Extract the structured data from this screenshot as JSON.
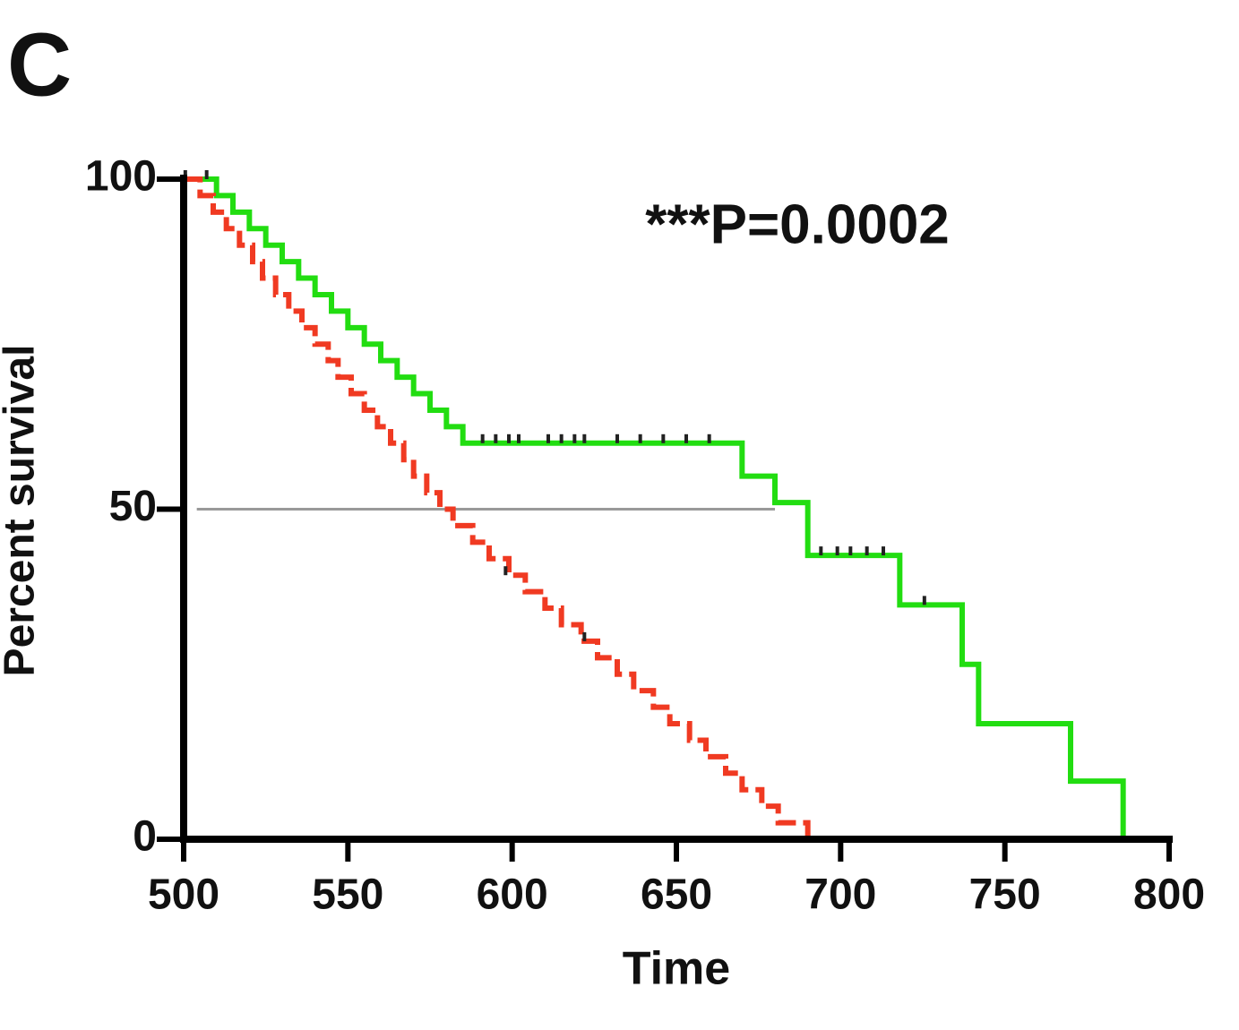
{
  "chart_data": {
    "type": "survival",
    "panel_label": "C",
    "annotation": "***P=0.0002",
    "x_label": "Time",
    "y_label": "Percent survival",
    "xlim": [
      500,
      800
    ],
    "xticks": [
      500,
      550,
      600,
      650,
      700,
      750,
      800
    ],
    "ylim": [
      0,
      100
    ],
    "yticks": [
      0,
      50,
      100
    ],
    "reference_line": {
      "y": 50,
      "x": [
        504,
        680
      ],
      "color": "#999999"
    },
    "censor_color": "#222222",
    "series": [
      {
        "color": "#22dd11",
        "dashed": false,
        "x": [
          500,
          510,
          515,
          520,
          525,
          530,
          535,
          540,
          545,
          550,
          555,
          560,
          565,
          570,
          575,
          580,
          585,
          670,
          680,
          690,
          718,
          737,
          742,
          770,
          786
        ],
        "values": [
          100,
          97.5,
          95,
          92.5,
          90,
          87.5,
          85,
          82.5,
          80,
          77.5,
          75,
          72.5,
          70,
          67.5,
          65,
          62.5,
          60,
          55,
          51,
          43,
          35.5,
          26.5,
          17.5,
          8.8,
          0
        ],
        "censor_x": [
          591,
          595,
          599,
          602,
          611,
          615,
          619,
          622,
          632,
          639,
          646,
          653,
          660,
          694,
          699,
          703,
          708,
          713,
          725.5
        ],
        "censor_y": [
          60,
          60,
          60,
          60,
          60,
          60,
          60,
          60,
          60,
          60,
          60,
          60,
          60,
          43,
          43,
          43,
          43,
          43,
          35.5
        ]
      },
      {
        "color": "#f03a22",
        "dashed": true,
        "x": [
          500,
          505,
          509,
          513,
          517,
          521,
          524,
          528,
          532,
          536,
          540,
          544,
          547,
          551,
          555,
          559,
          563,
          567,
          570,
          574,
          578,
          582,
          588,
          593,
          599,
          604,
          610,
          615,
          621,
          626,
          632,
          637,
          643,
          648,
          654,
          659,
          665,
          670,
          676,
          681,
          690
        ],
        "values": [
          100,
          97.5,
          95,
          92.5,
          90,
          87.5,
          85,
          82.5,
          80,
          77.5,
          75,
          72.5,
          70,
          67.5,
          65,
          62.5,
          60,
          57.5,
          55,
          52.5,
          50,
          47.5,
          45,
          42.5,
          40,
          37.5,
          35,
          32.5,
          30,
          27.5,
          25,
          22.5,
          20,
          17.5,
          15,
          12.5,
          10,
          7.5,
          5,
          2.5,
          0
        ],
        "censor_x": [
          500.5,
          507,
          598,
          622
        ],
        "censor_y": [
          100,
          100,
          40,
          30
        ]
      }
    ]
  }
}
